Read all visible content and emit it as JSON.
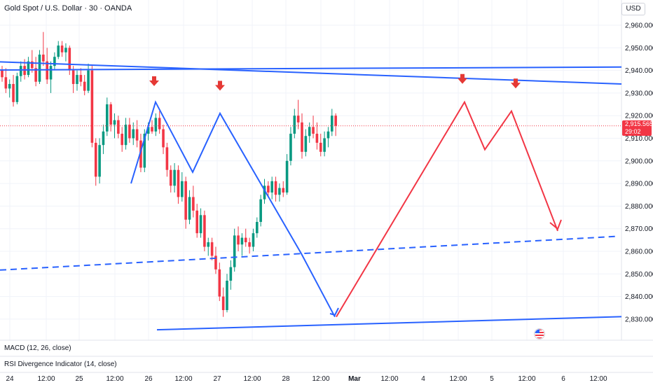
{
  "header": {
    "title": "Gold Spot / U.S. Dollar · 30 · OANDA",
    "currency": "USD"
  },
  "indicators": {
    "macd": "MACD (12, 26, close)",
    "rsi": "RSI Divergence Indicator (14, close)"
  },
  "last_price": {
    "value": "2,915.565",
    "countdown": "29:02"
  },
  "colors": {
    "up": "#089981",
    "down": "#f23645",
    "trend_blue": "#2962ff",
    "path_red": "#f23645",
    "arrow_red": "#e53935"
  },
  "chart_data": {
    "type": "candlestick",
    "symbol": "XAUUSD",
    "interval": "30",
    "y_ticks": [
      "2,960.000",
      "2,950.000",
      "2,940.000",
      "2,930.000",
      "2,920.000",
      "2,910.000",
      "2,900.000",
      "2,890.000",
      "2,880.000",
      "2,870.000",
      "2,860.000",
      "2,850.000",
      "2,840.000",
      "2,830.000"
    ],
    "x_ticks": [
      "24",
      "12:00",
      "25",
      "12:00",
      "26",
      "12:00",
      "27",
      "12:00",
      "28",
      "12:00",
      "Mar",
      "12:00",
      "4",
      "12:00",
      "5",
      "12:00",
      "6",
      "12:00"
    ],
    "blue_zigzag_prices": [
      2890,
      2926,
      2895,
      2921,
      2859,
      2831
    ],
    "red_path_prices": [
      2831,
      2926,
      2905,
      2922,
      2869
    ],
    "down_arrow_markers_at_prices": [
      2934,
      2932,
      2935,
      2933
    ],
    "trendlines": [
      {
        "name": "upper-descending",
        "from_price": 2943.8,
        "to_price": 2934,
        "style": "solid"
      },
      {
        "name": "horizontal-resistance",
        "from_price": 2940.2,
        "to_price": 2941.5,
        "style": "solid"
      },
      {
        "name": "dashed-support",
        "from_price": 2851.7,
        "to_price": 2866.6,
        "style": "dashed"
      },
      {
        "name": "lower-support",
        "from_price": 2825.3,
        "to_price": 2831.1,
        "style": "solid"
      }
    ],
    "candles_ohlc": [
      [
        2940.5,
        2942.0,
        2935.0,
        2937.0
      ],
      [
        2937.0,
        2941.0,
        2930.0,
        2932.0
      ],
      [
        2932.0,
        2936.0,
        2928.0,
        2934.0
      ],
      [
        2934.0,
        2938.0,
        2924.0,
        2926.0
      ],
      [
        2926.0,
        2939.0,
        2925.0,
        2937.5
      ],
      [
        2937.5,
        2944.0,
        2935.0,
        2942.0
      ],
      [
        2942.0,
        2945.0,
        2936.0,
        2938.0
      ],
      [
        2938.0,
        2946.0,
        2937.0,
        2944.0
      ],
      [
        2944.0,
        2949.0,
        2939.0,
        2941.0
      ],
      [
        2941.0,
        2946.0,
        2933.0,
        2935.0
      ],
      [
        2935.0,
        2949.0,
        2934.0,
        2947.0
      ],
      [
        2947.0,
        2957.0,
        2942.0,
        2944.0
      ],
      [
        2944.0,
        2950.0,
        2934.0,
        2936.0
      ],
      [
        2936.0,
        2944.0,
        2930.0,
        2942.0
      ],
      [
        2942.0,
        2948.0,
        2940.0,
        2946.0
      ],
      [
        2946.0,
        2953.0,
        2945.0,
        2951.0
      ],
      [
        2951.0,
        2953.0,
        2946.0,
        2948.0
      ],
      [
        2948.0,
        2952.0,
        2944.0,
        2950.0
      ],
      [
        2950.0,
        2951.0,
        2938.0,
        2940.0
      ],
      [
        2940.0,
        2942.0,
        2930.0,
        2934.0
      ],
      [
        2934.0,
        2940.0,
        2931.0,
        2938.0
      ],
      [
        2938.0,
        2941.0,
        2933.0,
        2935.0
      ],
      [
        2935.0,
        2938.0,
        2929.0,
        2931.0
      ],
      [
        2931.0,
        2943.0,
        2930.0,
        2940.0
      ],
      [
        2940.0,
        2942.0,
        2906.0,
        2908.0
      ],
      [
        2908.0,
        2910.0,
        2889.0,
        2893.0
      ],
      [
        2893.0,
        2910.0,
        2890.0,
        2907.0
      ],
      [
        2907.0,
        2916.0,
        2903.0,
        2913.0
      ],
      [
        2913.0,
        2928.0,
        2911.0,
        2925.0
      ],
      [
        2925.0,
        2926.0,
        2913.0,
        2916.0
      ],
      [
        2916.0,
        2921.0,
        2910.0,
        2918.0
      ],
      [
        2918.0,
        2920.0,
        2910.0,
        2912.0
      ],
      [
        2912.0,
        2915.0,
        2904.0,
        2907.0
      ],
      [
        2907.0,
        2919.0,
        2905.0,
        2916.0
      ],
      [
        2916.0,
        2919.0,
        2908.0,
        2910.0
      ],
      [
        2910.0,
        2917.0,
        2907.0,
        2914.0
      ],
      [
        2914.0,
        2918.0,
        2906.0,
        2909.0
      ],
      [
        2909.0,
        2912.0,
        2895.0,
        2897.0
      ],
      [
        2897.0,
        2914.0,
        2895.0,
        2912.0
      ],
      [
        2912.0,
        2917.0,
        2909.0,
        2915.0
      ],
      [
        2915.0,
        2918.0,
        2912.0,
        2913.0
      ],
      [
        2913.0,
        2921.0,
        2911.0,
        2919.0
      ],
      [
        2919.0,
        2922.0,
        2912.0,
        2914.0
      ],
      [
        2914.0,
        2916.0,
        2903.0,
        2906.0
      ],
      [
        2906.0,
        2908.0,
        2893.0,
        2896.0
      ],
      [
        2896.0,
        2898.0,
        2886.0,
        2889.0
      ],
      [
        2889.0,
        2899.0,
        2886.0,
        2896.0
      ],
      [
        2896.0,
        2898.0,
        2881.0,
        2884.0
      ],
      [
        2884.0,
        2895.0,
        2882.0,
        2891.0
      ],
      [
        2891.0,
        2893.0,
        2870.0,
        2874.0
      ],
      [
        2874.0,
        2887.0,
        2872.0,
        2884.0
      ],
      [
        2884.0,
        2889.0,
        2875.0,
        2878.0
      ],
      [
        2878.0,
        2881.0,
        2866.0,
        2868.0
      ],
      [
        2868.0,
        2879.0,
        2866.0,
        2876.0
      ],
      [
        2876.0,
        2878.0,
        2860.0,
        2862.0
      ],
      [
        2862.0,
        2866.0,
        2858.0,
        2864.0
      ],
      [
        2864.0,
        2866.0,
        2856.0,
        2858.0
      ],
      [
        2858.0,
        2862.0,
        2850.0,
        2852.0
      ],
      [
        2852.0,
        2855.0,
        2838.0,
        2840.0
      ],
      [
        2840.0,
        2844.0,
        2831.0,
        2834.0
      ],
      [
        2834.0,
        2850.0,
        2833.0,
        2847.0
      ],
      [
        2847.0,
        2856.0,
        2843.0,
        2853.0
      ],
      [
        2853.0,
        2870.0,
        2851.0,
        2867.0
      ],
      [
        2867.0,
        2871.0,
        2860.0,
        2863.0
      ],
      [
        2863.0,
        2868.0,
        2858.0,
        2866.0
      ],
      [
        2866.0,
        2870.0,
        2862.0,
        2864.0
      ],
      [
        2864.0,
        2866.0,
        2859.0,
        2862.0
      ],
      [
        2862.0,
        2870.0,
        2860.0,
        2868.0
      ],
      [
        2868.0,
        2875.0,
        2866.0,
        2873.0
      ],
      [
        2873.0,
        2885.0,
        2871.0,
        2883.0
      ],
      [
        2883.0,
        2892.0,
        2881.0,
        2889.0
      ],
      [
        2889.0,
        2891.0,
        2884.0,
        2886.0
      ],
      [
        2886.0,
        2893.0,
        2883.0,
        2891.0
      ],
      [
        2891.0,
        2893.0,
        2882.0,
        2885.0
      ],
      [
        2885.0,
        2890.0,
        2882.0,
        2888.0
      ],
      [
        2888.0,
        2891.0,
        2884.0,
        2886.0
      ],
      [
        2886.0,
        2903.0,
        2885.0,
        2900.0
      ],
      [
        2900.0,
        2915.0,
        2898.0,
        2912.0
      ],
      [
        2912.0,
        2923.0,
        2910.0,
        2920.0
      ],
      [
        2920.0,
        2927.0,
        2914.0,
        2917.0
      ],
      [
        2917.0,
        2921.0,
        2901.0,
        2904.0
      ],
      [
        2904.0,
        2914.0,
        2902.0,
        2911.0
      ],
      [
        2911.0,
        2917.0,
        2908.0,
        2915.0
      ],
      [
        2915.0,
        2920.0,
        2910.0,
        2912.0
      ],
      [
        2912.0,
        2917.0,
        2905.0,
        2908.0
      ],
      [
        2908.0,
        2912.0,
        2902.0,
        2904.0
      ],
      [
        2904.0,
        2913.0,
        2902.0,
        2910.0
      ],
      [
        2910.0,
        2915.0,
        2906.0,
        2913.0
      ],
      [
        2913.0,
        2923.0,
        2911.0,
        2920.0
      ],
      [
        2920.0,
        2921.0,
        2911.0,
        2915.5
      ]
    ]
  }
}
